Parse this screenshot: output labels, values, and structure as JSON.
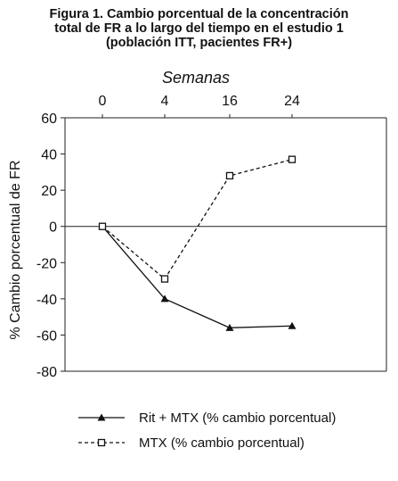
{
  "figure": {
    "title_lines": [
      "Figura 1. Cambio porcentual de la concentración",
      "total de FR a lo largo del tiempo en el estudio 1",
      "(población ITT, pacientes FR+)"
    ]
  },
  "chart_data": {
    "type": "line",
    "title": "Figura 1. Cambio porcentual de la concentración total de FR a lo largo del tiempo en el estudio 1 (población ITT, pacientes FR+)",
    "xlabel": "Semanas",
    "ylabel": "% Cambio porcentual de FR",
    "categories": [
      "0",
      "4",
      "16",
      "24"
    ],
    "yticks": [
      60,
      40,
      20,
      0,
      -20,
      -40,
      -60,
      -80
    ],
    "ylim": [
      -80,
      60
    ],
    "x_axis_position": "top",
    "zero_line": true,
    "legend_position": "bottom",
    "series": [
      {
        "name": "Rit + MTX (% cambio porcentual)",
        "values": [
          0,
          -40,
          -56,
          -55
        ],
        "marker": "filled-triangle",
        "line_style": "solid",
        "color": "#111111"
      },
      {
        "name": "MTX (% cambio porcentual)",
        "values": [
          0,
          -29,
          28,
          37
        ],
        "marker": "open-square",
        "line_style": "dashed",
        "color": "#111111"
      }
    ]
  }
}
